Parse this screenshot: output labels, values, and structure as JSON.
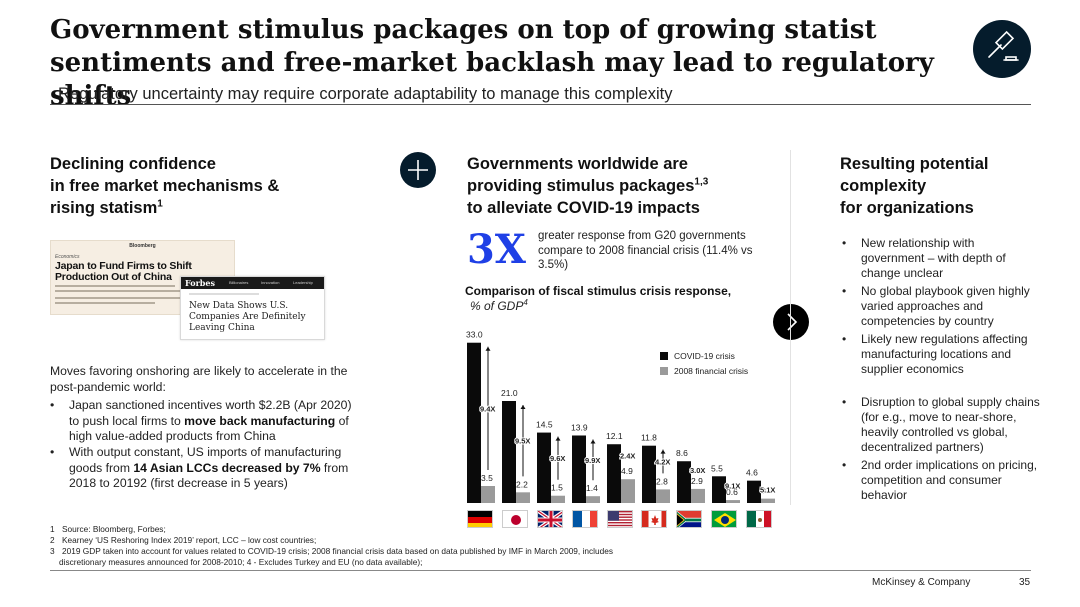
{
  "header": {
    "title": "Government stimulus packages on top of growing statist sentiments and free-market backlash may lead to regulatory shifts",
    "subtitle": "Regulatory uncertainty may require corporate adaptability to manage this complexity",
    "icon": "gavel-icon"
  },
  "left": {
    "heading_line1": "Declining confidence",
    "heading_line2": "in free market mechanisms &",
    "heading_line3": "rising statism",
    "heading_sup": "1",
    "clip1": {
      "source": "Bloomberg",
      "section": "Economics",
      "headline": "Japan to Fund Firms to Shift Production Out of China"
    },
    "clip2": {
      "source": "Forbes",
      "nav": [
        "Billionaires",
        "Innovation",
        "Leadership"
      ],
      "headline": "New Data Shows U.S. Companies Are Definitely Leaving China"
    },
    "intro": "Moves favoring onshoring are likely to accelerate in the post-pandemic world:",
    "bullet1": {
      "pre": "Japan sanctioned incentives worth $2.2B (Apr 2020) to push local firms to ",
      "bold": "move back manufacturing",
      "post": " of high value-added products from China"
    },
    "bullet2": {
      "pre": "With output constant, US imports of manufacturing goods from ",
      "bold": "14 Asian LCCs decreased by 7%",
      "post": " from 2018 to 20192 (first decrease in 5 years)"
    }
  },
  "middle": {
    "heading_line1": "Governments worldwide are",
    "heading_line2": "providing stimulus packages",
    "heading_sup": "1,3",
    "heading_line3": "to alleviate COVID-19 impacts",
    "big_stat": "3X",
    "big_stat_text": "greater response from G20 governments compare to 2008 financial crisis (11.4% vs 3.5%)",
    "chart_title": "Comparison of fiscal stimulus crisis response,",
    "chart_subtitle": "% of GDP",
    "chart_subtitle_sup": "4"
  },
  "right": {
    "heading_line1": "Resulting potential",
    "heading_line2": "complexity",
    "heading_line3": "for organizations",
    "bullets": [
      "New relationship with government – with depth of change unclear",
      "No global playbook given highly varied approaches and competencies by country",
      "Likely new regulations affecting manufacturing locations and supplier economics",
      "Disruption to global supply chains (for e.g., move to near-shore, heavily controlled vs global, decentralized partners)",
      "2nd order implications on pricing, competition and consumer behavior"
    ]
  },
  "chart_data": {
    "type": "bar",
    "title": "Comparison of fiscal stimulus crisis response,",
    "ylabel": "% of GDP",
    "categories": [
      "Germany",
      "Japan",
      "United Kingdom",
      "France",
      "United States",
      "Canada",
      "South Africa",
      "Brazil",
      "Mexico"
    ],
    "series": [
      {
        "name": "COVID-19 crisis",
        "color": "#0a0a0a",
        "values": [
          33.0,
          21.0,
          14.5,
          13.9,
          12.1,
          11.8,
          8.6,
          5.5,
          4.6
        ]
      },
      {
        "name": "2008 financial crisis",
        "color": "#9a9a9a",
        "values": [
          3.5,
          2.2,
          1.5,
          1.4,
          4.9,
          2.8,
          2.9,
          0.6,
          0.9
        ]
      }
    ],
    "multipliers": [
      "9.4X",
      "9.5X",
      "9.6X",
      "9.9X",
      "2.4X",
      "4.2X",
      "3.0X",
      "9.1X",
      "5.1X"
    ],
    "ylim": [
      0,
      35
    ],
    "grid": false,
    "legend_position": "right"
  },
  "flag_icons": [
    "germany-flag-icon",
    "japan-flag-icon",
    "uk-flag-icon",
    "france-flag-icon",
    "usa-flag-icon",
    "canada-flag-icon",
    "south-africa-flag-icon",
    "brazil-flag-icon",
    "mexico-flag-icon"
  ],
  "footnotes": {
    "n1": "1",
    "t1": "Source: Bloomberg, Forbes;",
    "n2": "2",
    "t2": "Kearney ‘US Reshoring Index 2019’ report, LCC – low cost countries;",
    "n3": "3",
    "t3": "2019 GDP taken into account for values related to COVID-19 crisis; 2008 financial crisis data based on data published by IMF in March 2009, includes",
    "t3b": "discretionary measures announced for 2008-2010; 4 - Excludes Turkey and EU (no data available);"
  },
  "footer": {
    "brand": "McKinsey & Company",
    "page": "35"
  },
  "colors": {
    "navy": "#051c2c",
    "accent_blue": "#1f40e6",
    "covid_bar": "#0a0a0a",
    "crisis_2008_bar": "#9a9a9a"
  }
}
